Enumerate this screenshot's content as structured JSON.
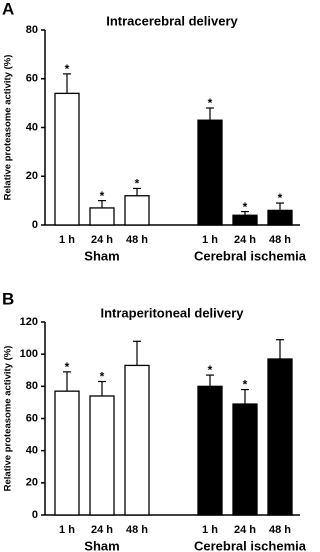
{
  "chart_data": [
    {
      "type": "bar",
      "panel_label": "A",
      "title": "Intracerebral delivery",
      "ylabel": "Relative proteasome activity (%)",
      "categories": [
        "1 h",
        "24 h",
        "48 h"
      ],
      "series": [
        {
          "name": "Sham",
          "color": "#ffffff",
          "values": [
            54,
            7,
            12
          ],
          "errors": [
            8,
            3,
            3
          ],
          "markers": [
            "*",
            "*",
            "*"
          ]
        },
        {
          "name": "Cerebral ischemia",
          "color": "#000000",
          "values": [
            43,
            4,
            6
          ],
          "errors": [
            5,
            1.5,
            3
          ],
          "markers": [
            "*",
            "*",
            "*"
          ]
        }
      ],
      "ylim": [
        0,
        80
      ],
      "yticks": [
        0,
        20,
        40,
        60,
        80
      ]
    },
    {
      "type": "bar",
      "panel_label": "B",
      "title": "Intraperitoneal delivery",
      "ylabel": "Relative proteasome activity (%)",
      "categories": [
        "1 h",
        "24 h",
        "48 h"
      ],
      "series": [
        {
          "name": "Sham",
          "color": "#ffffff",
          "values": [
            77,
            74,
            93
          ],
          "errors": [
            12,
            9,
            15
          ],
          "markers": [
            "*",
            "*",
            null
          ]
        },
        {
          "name": "Cerebral ischemia",
          "color": "#000000",
          "values": [
            80,
            69,
            97
          ],
          "errors": [
            7,
            9,
            12
          ],
          "markers": [
            "*",
            "*",
            null
          ]
        }
      ],
      "ylim": [
        0,
        120
      ],
      "yticks": [
        0,
        20,
        40,
        60,
        80,
        100,
        120
      ]
    }
  ]
}
